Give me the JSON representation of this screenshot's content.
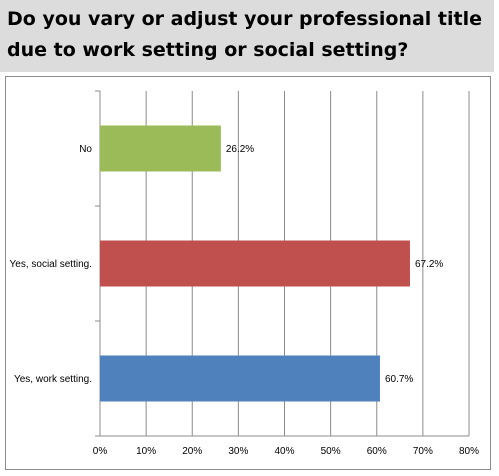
{
  "title": "Do you vary or adjust your professional title due to work setting or social setting?",
  "chart_data": {
    "type": "bar",
    "orientation": "horizontal",
    "title": "",
    "xlabel": "",
    "ylabel": "",
    "categories": [
      "No",
      "Yes, social setting.",
      "Yes, work setting."
    ],
    "values": [
      26.2,
      67.2,
      60.7
    ],
    "data_labels": [
      "26.2%",
      "67.2%",
      "60.7%"
    ],
    "bar_colors": [
      "#9bbb59",
      "#c0504d",
      "#4f81bd"
    ],
    "xlim": [
      0,
      80
    ],
    "x_ticks": [
      0,
      10,
      20,
      30,
      40,
      50,
      60,
      70,
      80
    ],
    "x_tick_labels": [
      "0%",
      "10%",
      "20%",
      "30%",
      "40%",
      "50%",
      "60%",
      "70%",
      "80%"
    ],
    "grid": true,
    "legend": "none"
  }
}
